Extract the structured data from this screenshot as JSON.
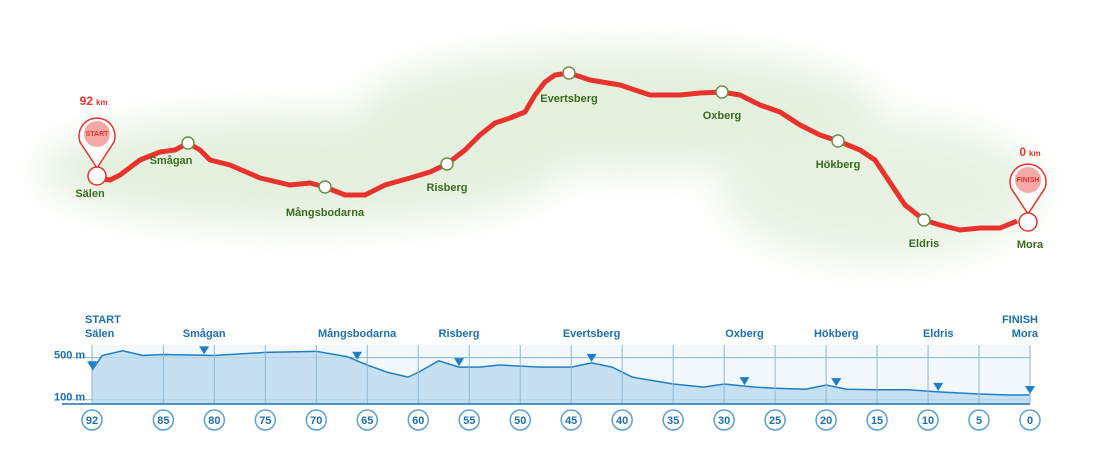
{
  "map": {
    "start": {
      "label": "START",
      "name": "Sälen",
      "distance": "92",
      "unit": "km"
    },
    "finish": {
      "label": "FINISH",
      "name": "Mora",
      "distance": "0",
      "unit": "km"
    },
    "checkpoints": [
      "Smågan",
      "Mångsbodarna",
      "Risberg",
      "Evertsberg",
      "Oxberg",
      "Hökberg",
      "Eldris"
    ]
  },
  "chart_data": {
    "type": "area",
    "color": "#1e7fc4",
    "start": {
      "label": "START",
      "name": "Sälen",
      "km": 92
    },
    "finish": {
      "label": "FINISH",
      "name": "Mora",
      "km": 0
    },
    "checkpoints": [
      {
        "name": "Smågan",
        "km": 81
      },
      {
        "name": "Mångsbodarna",
        "km": 66
      },
      {
        "name": "Risberg",
        "km": 56
      },
      {
        "name": "Evertsberg",
        "km": 43
      },
      {
        "name": "Oxberg",
        "km": 28
      },
      {
        "name": "Hökberg",
        "km": 19
      },
      {
        "name": "Eldris",
        "km": 9
      }
    ],
    "x": [
      92,
      91,
      89,
      87,
      85,
      80,
      75,
      70,
      67,
      65,
      63,
      61,
      60,
      58,
      56,
      54,
      52,
      48,
      45,
      43,
      41,
      39,
      35,
      32,
      30,
      27,
      25,
      22,
      20,
      18,
      15,
      12,
      9,
      5,
      2,
      0
    ],
    "values": [
      380,
      520,
      565,
      520,
      530,
      520,
      550,
      560,
      510,
      430,
      360,
      315,
      360,
      470,
      410,
      410,
      430,
      410,
      410,
      450,
      410,
      315,
      250,
      220,
      250,
      220,
      210,
      200,
      240,
      200,
      195,
      195,
      175,
      155,
      145,
      145
    ],
    "xlim": [
      92,
      0
    ],
    "ylim": [
      60,
      620
    ],
    "xticks": [
      92,
      85,
      80,
      75,
      70,
      65,
      60,
      55,
      50,
      45,
      40,
      35,
      30,
      25,
      20,
      15,
      10,
      5,
      0
    ],
    "yticks": [
      {
        "value": 500,
        "label": "500 m"
      },
      {
        "value": 100,
        "label": "100 m"
      }
    ],
    "grid": true
  }
}
